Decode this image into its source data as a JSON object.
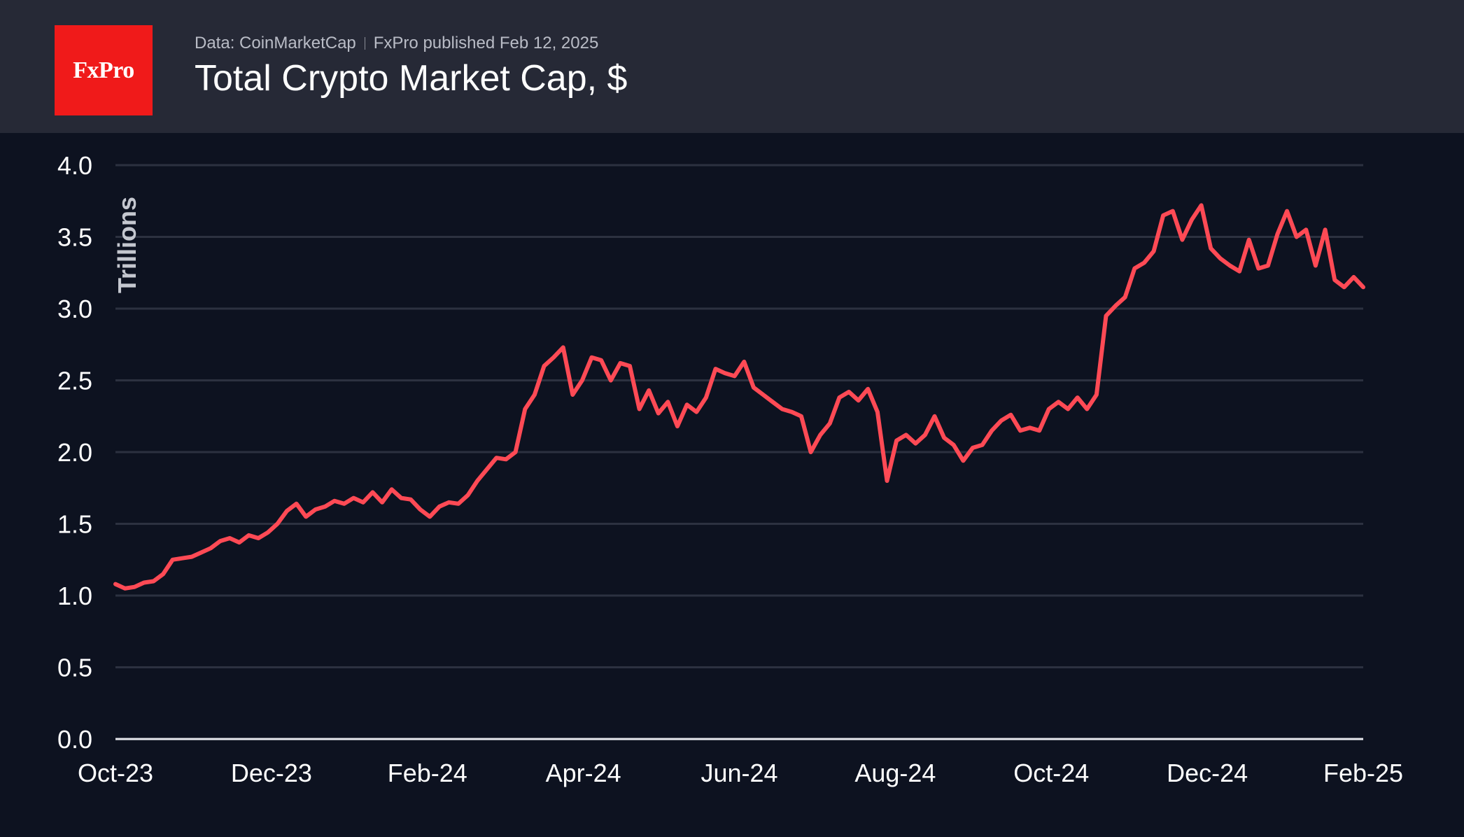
{
  "header": {
    "logo_text": "FxPro",
    "source": "Data: CoinMarketCap",
    "published": "FxPro published Feb 12, 2025",
    "title": "Total Crypto Market Cap, $"
  },
  "colors": {
    "line": "#ff4a55",
    "background": "#0d1220",
    "header_bg": "#262936",
    "logo_bg": "#f01a1a",
    "grid": "#2c3140"
  },
  "chart_data": {
    "type": "line",
    "title": "Total Crypto Market Cap, $",
    "ylabel": "Trillions",
    "xlabel": "",
    "ylim": [
      0,
      4
    ],
    "yticks": [
      "0.0",
      "0.5",
      "1.0",
      "1.5",
      "2.0",
      "2.5",
      "3.0",
      "3.5",
      "4.0"
    ],
    "xticks": [
      "Oct-23",
      "Dec-23",
      "Feb-24",
      "Apr-24",
      "Jun-24",
      "Aug-24",
      "Oct-24",
      "Dec-24",
      "Feb-25"
    ],
    "grid": true,
    "series": [
      {
        "values": [
          1.08,
          1.05,
          1.06,
          1.09,
          1.1,
          1.15,
          1.25,
          1.26,
          1.27,
          1.3,
          1.33,
          1.38,
          1.4,
          1.37,
          1.42,
          1.4,
          1.44,
          1.5,
          1.59,
          1.64,
          1.55,
          1.6,
          1.62,
          1.66,
          1.64,
          1.68,
          1.65,
          1.72,
          1.65,
          1.74,
          1.68,
          1.67,
          1.6,
          1.55,
          1.62,
          1.65,
          1.64,
          1.7,
          1.8,
          1.88,
          1.96,
          1.95,
          2.0,
          2.3,
          2.4,
          2.6,
          2.66,
          2.73,
          2.4,
          2.5,
          2.66,
          2.64,
          2.5,
          2.62,
          2.6,
          2.3,
          2.43,
          2.27,
          2.35,
          2.18,
          2.33,
          2.28,
          2.38,
          2.58,
          2.55,
          2.53,
          2.63,
          2.45,
          2.4,
          2.35,
          2.3,
          2.28,
          2.25,
          2.0,
          2.12,
          2.2,
          2.38,
          2.42,
          2.36,
          2.44,
          2.28,
          1.8,
          2.08,
          2.12,
          2.06,
          2.12,
          2.25,
          2.1,
          2.05,
          1.94,
          2.03,
          2.05,
          2.15,
          2.22,
          2.26,
          2.15,
          2.17,
          2.15,
          2.3,
          2.35,
          2.3,
          2.38,
          2.3,
          2.4,
          2.95,
          3.02,
          3.08,
          3.28,
          3.32,
          3.4,
          3.65,
          3.68,
          3.48,
          3.62,
          3.72,
          3.42,
          3.35,
          3.3,
          3.26,
          3.48,
          3.28,
          3.3,
          3.52,
          3.68,
          3.5,
          3.55,
          3.3,
          3.55,
          3.2,
          3.15,
          3.22,
          3.15
        ]
      }
    ]
  }
}
